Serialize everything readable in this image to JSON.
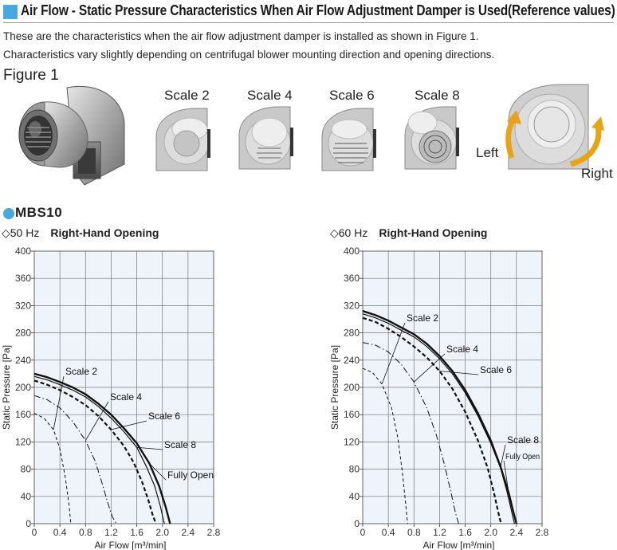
{
  "header": {
    "title": "Air Flow - Static Pressure Characteristics When Air Flow Adjustment Damper is Used(Reference values)",
    "accent": "#4aa8e0"
  },
  "description": [
    "These are the characteristics when the air flow adjustment damper is installed as shown in Figure 1.",
    "Characteristics vary slightly depending on centrifugal blower mounting direction and opening directions."
  ],
  "figure": {
    "label": "Figure 1",
    "scales": [
      "Scale 2",
      "Scale 4",
      "Scale 6",
      "Scale 8"
    ],
    "left_label": "Left",
    "right_label": "Right"
  },
  "model": "MBS10",
  "chart_data": [
    {
      "type": "line",
      "title": "◇50 Hz",
      "subtitle": "Right-Hand Opening",
      "xlabel": "Air Flow [m³/min]",
      "ylabel": "Static Pressure [Pa]",
      "xlim": [
        0,
        2.8
      ],
      "ylim": [
        0,
        400
      ],
      "xticks": [
        "0",
        "0.4",
        "0.8",
        "1.2",
        "1.6",
        "2.0",
        "2.4",
        "2.8"
      ],
      "yticks": [
        "0",
        "40",
        "80",
        "120",
        "160",
        "200",
        "240",
        "280",
        "320",
        "360",
        "400"
      ],
      "grid": true,
      "series": [
        {
          "name": "Fully Open",
          "style": "thick-solid",
          "x": [
            0,
            0.2,
            0.4,
            0.6,
            0.8,
            1.0,
            1.2,
            1.4,
            1.6,
            1.8,
            1.95,
            2.05,
            2.12
          ],
          "y": [
            220,
            215,
            208,
            200,
            190,
            176,
            160,
            140,
            118,
            88,
            55,
            25,
            0
          ]
        },
        {
          "name": "Scale 8",
          "style": "thin-solid",
          "x": [
            0,
            0.2,
            0.4,
            0.6,
            0.8,
            1.0,
            1.2,
            1.4,
            1.6,
            1.75,
            1.88,
            1.97,
            2.03
          ],
          "y": [
            216,
            211,
            204,
            196,
            186,
            172,
            155,
            135,
            112,
            84,
            55,
            25,
            0
          ]
        },
        {
          "name": "Scale 6",
          "style": "thick-dash",
          "x": [
            0,
            0.2,
            0.4,
            0.6,
            0.8,
            1.0,
            1.2,
            1.4,
            1.55,
            1.68,
            1.78,
            1.85,
            1.9
          ],
          "y": [
            210,
            204,
            196,
            186,
            174,
            158,
            138,
            114,
            90,
            62,
            35,
            12,
            0
          ]
        },
        {
          "name": "Scale 4",
          "style": "dash-dot",
          "x": [
            0,
            0.2,
            0.4,
            0.6,
            0.8,
            0.95,
            1.05,
            1.15,
            1.22,
            1.28
          ],
          "y": [
            188,
            182,
            170,
            150,
            122,
            92,
            62,
            30,
            10,
            0
          ]
        },
        {
          "name": "Scale 2",
          "style": "thin-dash",
          "x": [
            0,
            0.15,
            0.3,
            0.4,
            0.48,
            0.54,
            0.57
          ],
          "y": [
            162,
            155,
            138,
            110,
            70,
            30,
            0
          ]
        }
      ],
      "annotations": [
        "Scale 2",
        "Scale 4",
        "Scale 6",
        "Scale 8",
        "Fully Open"
      ]
    },
    {
      "type": "line",
      "title": "◇60 Hz",
      "subtitle": "Right-Hand Opening",
      "xlabel": "Air Flow [m³/min]",
      "ylabel": "Static Pressure [Pa]",
      "xlim": [
        0,
        2.8
      ],
      "ylim": [
        0,
        400
      ],
      "xticks": [
        "0",
        "0.4",
        "0.8",
        "1.2",
        "1.6",
        "2.0",
        "2.4",
        "2.8"
      ],
      "yticks": [
        "0",
        "40",
        "80",
        "120",
        "160",
        "200",
        "240",
        "280",
        "320",
        "360",
        "400"
      ],
      "grid": true,
      "series": [
        {
          "name": "Fully Open",
          "style": "thick-solid",
          "x": [
            0,
            0.2,
            0.4,
            0.6,
            0.8,
            1.0,
            1.2,
            1.4,
            1.6,
            1.8,
            2.0,
            2.15,
            2.28,
            2.35,
            2.4
          ],
          "y": [
            312,
            306,
            298,
            288,
            278,
            264,
            246,
            224,
            196,
            162,
            122,
            84,
            45,
            18,
            0
          ]
        },
        {
          "name": "Scale 8",
          "style": "thin-solid",
          "x": [
            0,
            0.2,
            0.4,
            0.6,
            0.8,
            1.0,
            1.2,
            1.4,
            1.6,
            1.8,
            2.0,
            2.15,
            2.25,
            2.32,
            2.37
          ],
          "y": [
            308,
            302,
            294,
            284,
            274,
            260,
            242,
            220,
            192,
            158,
            118,
            82,
            48,
            20,
            0
          ]
        },
        {
          "name": "Scale 6",
          "style": "thick-dash",
          "x": [
            0,
            0.2,
            0.4,
            0.6,
            0.8,
            1.0,
            1.2,
            1.4,
            1.6,
            1.8,
            1.95,
            2.05,
            2.12,
            2.16
          ],
          "y": [
            302,
            296,
            286,
            274,
            260,
            244,
            224,
            198,
            164,
            122,
            82,
            45,
            15,
            0
          ]
        },
        {
          "name": "Scale 4",
          "style": "dash-dot",
          "x": [
            0,
            0.2,
            0.4,
            0.6,
            0.8,
            1.0,
            1.15,
            1.28,
            1.38,
            1.45,
            1.5
          ],
          "y": [
            266,
            262,
            252,
            234,
            208,
            170,
            130,
            85,
            45,
            15,
            0
          ]
        },
        {
          "name": "Scale 2",
          "style": "thin-dash",
          "x": [
            0,
            0.15,
            0.3,
            0.45,
            0.55,
            0.62,
            0.67,
            0.7
          ],
          "y": [
            228,
            222,
            205,
            170,
            125,
            75,
            30,
            0
          ]
        }
      ],
      "annotations": [
        "Scale 2",
        "Scale 4",
        "Scale 6",
        "Scale 8",
        "Fully Open"
      ]
    }
  ]
}
